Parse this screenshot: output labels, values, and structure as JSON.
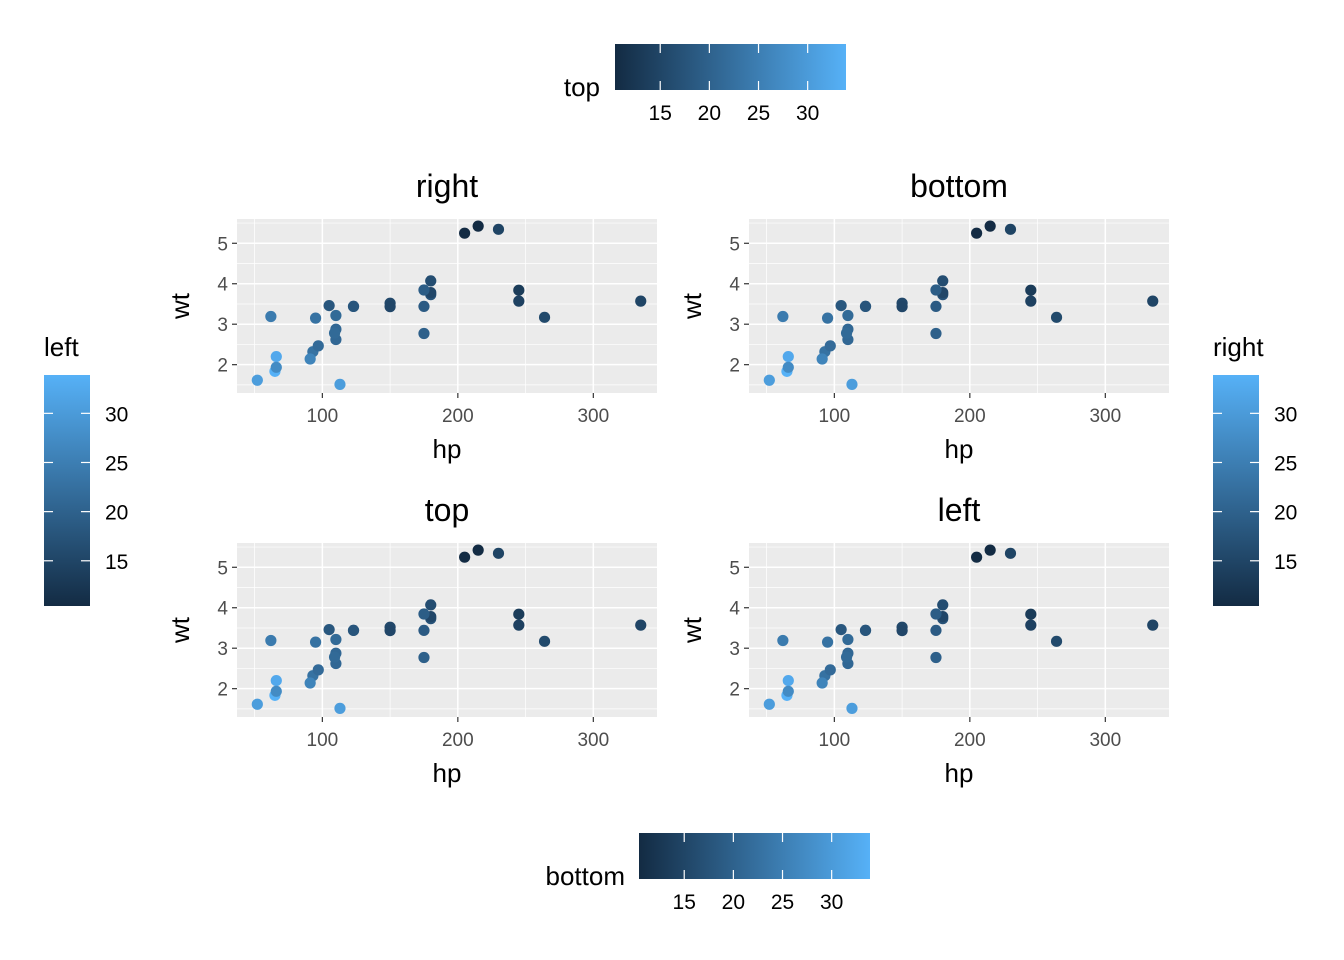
{
  "panels_x_axis_label": "hp",
  "panels_y_axis_label": "wt",
  "colors": {
    "panel_bg": "#ebebeb",
    "grid_major": "#ffffff",
    "grad_low": "#132b43",
    "grad_high": "#56b1f7",
    "axis_text": "#4d4d4d",
    "title_text": "#000000"
  },
  "legends": [
    {
      "position": "top",
      "title": "top",
      "orientation": "horizontal",
      "ticks": [
        15,
        20,
        25,
        30
      ]
    },
    {
      "position": "bottom",
      "title": "bottom",
      "orientation": "horizontal",
      "ticks": [
        15,
        20,
        25,
        30
      ]
    },
    {
      "position": "left",
      "title": "left",
      "orientation": "vertical",
      "ticks": [
        15,
        20,
        25,
        30
      ]
    },
    {
      "position": "right",
      "title": "right",
      "orientation": "vertical",
      "ticks": [
        15,
        20,
        25,
        30
      ]
    }
  ],
  "colorbar_range": [
    10.4,
    33.9
  ],
  "chart_data": [
    {
      "type": "scatter",
      "title": "right",
      "xlabel": "hp",
      "ylabel": "wt",
      "xlim": [
        37,
        347
      ],
      "ylim": [
        1.3,
        5.6
      ],
      "x_ticks": [
        100,
        200,
        300
      ],
      "y_ticks": [
        2,
        3,
        4,
        5
      ],
      "color_variable_range": [
        10.4,
        33.9
      ],
      "points": [
        {
          "x": 110,
          "y": 2.62,
          "c": 21.0
        },
        {
          "x": 110,
          "y": 2.875,
          "c": 21.0
        },
        {
          "x": 93,
          "y": 2.32,
          "c": 22.8
        },
        {
          "x": 110,
          "y": 3.215,
          "c": 21.4
        },
        {
          "x": 175,
          "y": 3.44,
          "c": 18.7
        },
        {
          "x": 105,
          "y": 3.46,
          "c": 18.1
        },
        {
          "x": 245,
          "y": 3.57,
          "c": 14.3
        },
        {
          "x": 62,
          "y": 3.19,
          "c": 24.4
        },
        {
          "x": 95,
          "y": 3.15,
          "c": 22.8
        },
        {
          "x": 123,
          "y": 3.44,
          "c": 19.2
        },
        {
          "x": 123,
          "y": 3.44,
          "c": 17.8
        },
        {
          "x": 180,
          "y": 4.07,
          "c": 16.4
        },
        {
          "x": 180,
          "y": 3.73,
          "c": 17.3
        },
        {
          "x": 180,
          "y": 3.78,
          "c": 15.2
        },
        {
          "x": 205,
          "y": 5.25,
          "c": 10.4
        },
        {
          "x": 215,
          "y": 5.424,
          "c": 10.4
        },
        {
          "x": 230,
          "y": 5.345,
          "c": 14.7
        },
        {
          "x": 66,
          "y": 2.2,
          "c": 32.4
        },
        {
          "x": 52,
          "y": 1.615,
          "c": 30.4
        },
        {
          "x": 65,
          "y": 1.835,
          "c": 33.9
        },
        {
          "x": 97,
          "y": 2.465,
          "c": 21.5
        },
        {
          "x": 150,
          "y": 3.52,
          "c": 15.5
        },
        {
          "x": 150,
          "y": 3.435,
          "c": 15.2
        },
        {
          "x": 245,
          "y": 3.84,
          "c": 13.3
        },
        {
          "x": 175,
          "y": 3.845,
          "c": 19.2
        },
        {
          "x": 66,
          "y": 1.935,
          "c": 27.3
        },
        {
          "x": 91,
          "y": 2.14,
          "c": 26.0
        },
        {
          "x": 113,
          "y": 1.513,
          "c": 30.4
        },
        {
          "x": 264,
          "y": 3.17,
          "c": 15.8
        },
        {
          "x": 175,
          "y": 2.77,
          "c": 19.7
        },
        {
          "x": 335,
          "y": 3.57,
          "c": 15.0
        },
        {
          "x": 109,
          "y": 2.78,
          "c": 21.4
        }
      ]
    },
    {
      "type": "scatter",
      "title": "bottom",
      "xlabel": "hp",
      "ylabel": "wt",
      "same_points_as_panel": 0
    },
    {
      "type": "scatter",
      "title": "top",
      "xlabel": "hp",
      "ylabel": "wt",
      "same_points_as_panel": 0
    },
    {
      "type": "scatter",
      "title": "left",
      "xlabel": "hp",
      "ylabel": "wt",
      "same_points_as_panel": 0
    }
  ]
}
